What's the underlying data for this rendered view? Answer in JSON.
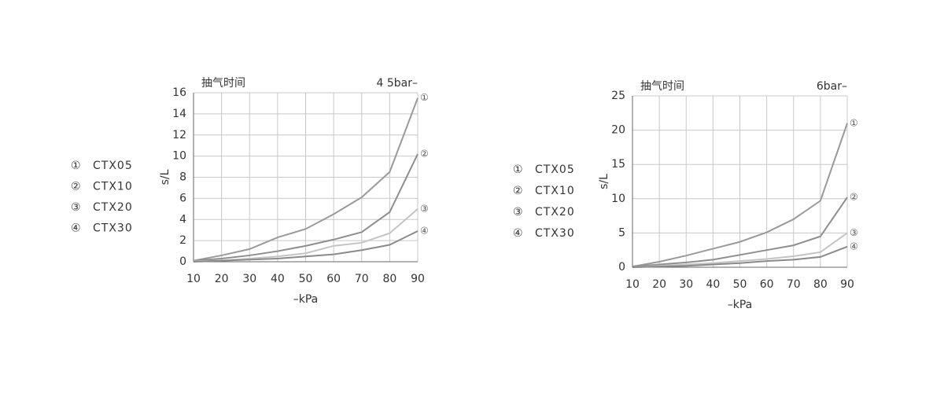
{
  "chart_data": [
    {
      "type": "line",
      "title": "抽气时间",
      "subtitle": "4 5bar–",
      "y_label": "s/L",
      "x_label": "–kPa",
      "x": [
        10,
        20,
        30,
        40,
        50,
        60,
        70,
        80,
        90
      ],
      "xlim": [
        10,
        90
      ],
      "xticks": [
        10,
        20,
        30,
        40,
        50,
        60,
        70,
        80,
        90
      ],
      "ylim": [
        0,
        16
      ],
      "yticks": [
        0,
        2,
        4,
        6,
        8,
        10,
        12,
        14,
        16
      ],
      "grid": true,
      "legend": "left",
      "series": [
        {
          "symbol": "①",
          "name": "CTX05",
          "color": "#9a9a9a",
          "values": [
            0.1,
            0.6,
            1.2,
            2.3,
            3.1,
            4.5,
            6.1,
            8.5,
            15.5
          ]
        },
        {
          "symbol": "②",
          "name": "CTX10",
          "color": "#8e8e8e",
          "values": [
            0.1,
            0.3,
            0.6,
            1.0,
            1.5,
            2.1,
            2.8,
            4.7,
            10.2
          ]
        },
        {
          "symbol": "③",
          "name": "CTX20",
          "color": "#c4c4c4",
          "values": [
            0.05,
            0.1,
            0.3,
            0.5,
            0.8,
            1.5,
            1.8,
            2.7,
            5.0
          ]
        },
        {
          "symbol": "④",
          "name": "CTX30",
          "color": "#8a8a8a",
          "values": [
            0,
            0.1,
            0.2,
            0.3,
            0.5,
            0.7,
            1.1,
            1.6,
            2.9
          ]
        }
      ]
    },
    {
      "type": "line",
      "title": "抽气时间",
      "subtitle": "6bar–",
      "y_label": "s/L",
      "x_label": "–kPa",
      "x": [
        10,
        20,
        30,
        40,
        50,
        60,
        70,
        80,
        90
      ],
      "xlim": [
        10,
        90
      ],
      "xticks": [
        10,
        20,
        30,
        40,
        50,
        60,
        70,
        80,
        90
      ],
      "ylim": [
        0,
        25
      ],
      "yticks": [
        0,
        5,
        10,
        15,
        20,
        25
      ],
      "grid": true,
      "legend": "left",
      "series": [
        {
          "symbol": "①",
          "name": "CTX05",
          "color": "#9a9a9a",
          "values": [
            0.1,
            0.8,
            1.7,
            2.7,
            3.7,
            5.1,
            7.0,
            9.7,
            21.0
          ]
        },
        {
          "symbol": "②",
          "name": "CTX10",
          "color": "#8e8e8e",
          "values": [
            0.1,
            0.4,
            0.7,
            1.1,
            1.8,
            2.5,
            3.2,
            4.5,
            10.2
          ]
        },
        {
          "symbol": "③",
          "name": "CTX20",
          "color": "#c4c4c4",
          "values": [
            0,
            0.2,
            0.4,
            0.6,
            0.9,
            1.2,
            1.6,
            2.2,
            5.0
          ]
        },
        {
          "symbol": "④",
          "name": "CTX30",
          "color": "#8a8a8a",
          "values": [
            0,
            0.1,
            0.2,
            0.4,
            0.6,
            0.9,
            1.1,
            1.5,
            3.0
          ]
        }
      ]
    }
  ]
}
